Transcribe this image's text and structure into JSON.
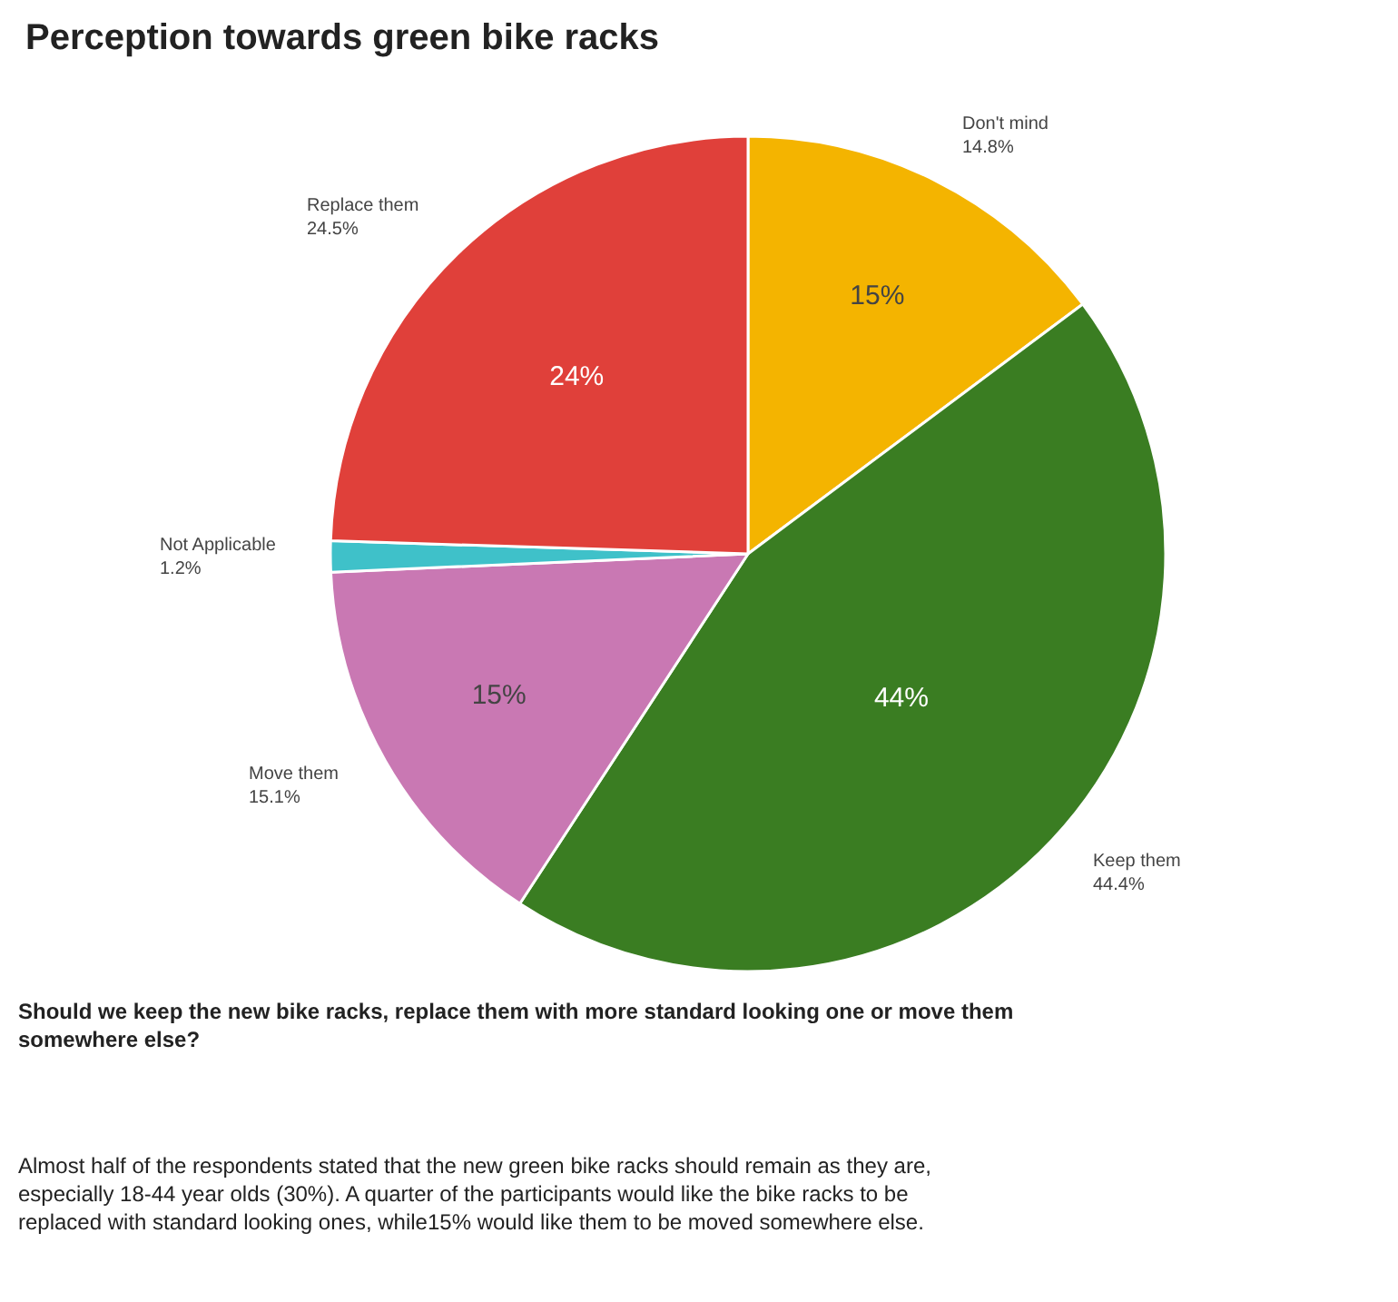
{
  "chart_data": {
    "type": "pie",
    "title": "Perception towards green bike racks",
    "categories": [
      "Don't mind",
      "Keep them",
      "Move them",
      "Not Applicable",
      "Replace them"
    ],
    "values": [
      14.8,
      44.4,
      15.1,
      1.2,
      24.5
    ],
    "colors": [
      "#f4b400",
      "#3a7d22",
      "#c978b3",
      "#3fc1c9",
      "#e0403a"
    ],
    "value_labels": [
      "14.8%",
      "44.4%",
      "15.1%",
      "1.2%",
      "24.5%"
    ],
    "legend": false,
    "annotations": [
      "Should we keep the new bike racks, replace them with more standard looking one or move them somewhere else?",
      "Almost half of the respondents stated that the new green bike racks should remain as they are, especially 18-44 year olds (30%). A quarter of the participants would like the bike racks to be replaced with standard looking ones, while15% would like them to be moved somewhere else.",
      "15%",
      "44%",
      "15%",
      "24%"
    ]
  }
}
